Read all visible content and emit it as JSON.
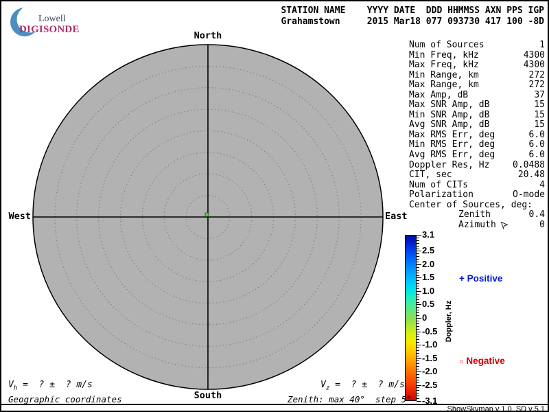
{
  "logo": {
    "line1": "Lowell",
    "line2": "DIGISONDE",
    "crescent_icon": "crescent-moon-icon",
    "colors": {
      "lowell_text": "#3d3f52",
      "digisonde_text": "#b02d68",
      "crescent": "#4a8fc2"
    }
  },
  "header": {
    "line1": "STATION NAME    YYYY DATE  DDD HHMMSS AXN PPS IGP",
    "line2": "Grahamstown     2015 Mar18 077 093730 417 100 -8D"
  },
  "compass": {
    "north": "North",
    "south": "South",
    "east": "East",
    "west": "West"
  },
  "stats": {
    "rows": [
      {
        "label": "Num of Sources",
        "value": "1"
      },
      {
        "label": "Min Freq, kHz",
        "value": "4300"
      },
      {
        "label": "Max Freq, kHz",
        "value": "4300"
      },
      {
        "label": "Min Range, km",
        "value": "272"
      },
      {
        "label": "Max Range, km",
        "value": "272"
      },
      {
        "label": "Max Amp, dB",
        "value": "37"
      },
      {
        "label": "Max SNR Amp, dB",
        "value": "15"
      },
      {
        "label": "Min SNR Amp, dB",
        "value": "15"
      },
      {
        "label": "Avg SNR Amp, dB",
        "value": "15"
      },
      {
        "label": "Max RMS Err, deg",
        "value": "6.0"
      },
      {
        "label": "Min RMS Err, deg",
        "value": "6.0"
      },
      {
        "label": "Avg RMS Err, deg",
        "value": "6.0"
      },
      {
        "label": "Doppler Res, Hz",
        "value": "0.0488"
      },
      {
        "label": "CIT, sec",
        "value": "20.48"
      },
      {
        "label": "Num of CITs",
        "value": "4"
      },
      {
        "label": "Polarization",
        "value": "O-mode"
      },
      {
        "label": "Center of Sources, deg:",
        "value": ""
      },
      {
        "label": "Zenith",
        "value": "0.4",
        "indent": true
      },
      {
        "label": "Azimuth",
        "value": "0",
        "indent": true,
        "cursor": true
      }
    ]
  },
  "colorbar": {
    "title": "Doppler, Hz",
    "max": 3.1,
    "min": -3.1,
    "minor_step": 0.1,
    "tick_values": [
      3.1,
      2.5,
      2.0,
      1.5,
      1.0,
      0.5,
      0,
      -0.5,
      -1.0,
      -1.5,
      -2.0,
      -2.5,
      -3.1
    ],
    "tick_labels": [
      "3.1",
      "2.5",
      "2.0",
      "1.5",
      "1.0",
      "0.5",
      "0",
      "-0.5",
      "-1.0",
      "-1.5",
      "-2.0",
      "-2.5",
      "-3.1"
    ],
    "gradient": [
      {
        "value": 3.1,
        "color": "#0008a0"
      },
      {
        "value": 2.9,
        "color": "#0018c0"
      },
      {
        "value": 2.6,
        "color": "#0038e8"
      },
      {
        "value": 2.2,
        "color": "#0068ff"
      },
      {
        "value": 1.8,
        "color": "#0098ff"
      },
      {
        "value": 1.4,
        "color": "#00c4ff"
      },
      {
        "value": 1.1,
        "color": "#00e0ee"
      },
      {
        "value": 0.8,
        "color": "#1ceec4"
      },
      {
        "value": 0.5,
        "color": "#44ee9a"
      },
      {
        "value": 0.2,
        "color": "#70e670"
      },
      {
        "value": 0.0,
        "color": "#86e05a"
      },
      {
        "value": -0.3,
        "color": "#b0e830"
      },
      {
        "value": -0.6,
        "color": "#d8f00c"
      },
      {
        "value": -0.9,
        "color": "#f6ea00"
      },
      {
        "value": -1.2,
        "color": "#ffd000"
      },
      {
        "value": -1.6,
        "color": "#ffa400"
      },
      {
        "value": -2.0,
        "color": "#ff7400"
      },
      {
        "value": -2.4,
        "color": "#fc4800"
      },
      {
        "value": -2.8,
        "color": "#ea1c00"
      },
      {
        "value": -3.1,
        "color": "#d40000"
      }
    ]
  },
  "legend": {
    "positive": {
      "symbol": "+",
      "label": "Positive",
      "color": "#0018d8"
    },
    "negative": {
      "symbol": "○",
      "label": "Negative",
      "color": "#d40000"
    }
  },
  "skymap": {
    "max_zenith_deg": 40,
    "zenith_step_deg": 5,
    "disc_color": "#b2b2b2",
    "source": {
      "zenith_deg": 0.4,
      "azimuth_deg": 0,
      "dot_color": "#55d245"
    }
  },
  "footer": {
    "vh": {
      "var": "V",
      "sub": "h",
      "rest": " =  ? ±  ? m/s"
    },
    "vz": {
      "var": "V",
      "sub": "z",
      "rest": " =  ? ±  ? m/s"
    },
    "coords": "Geographic coordinates",
    "zenith_info": "Zenith: max 40°  step 5°",
    "version": "ShowSkymap v 1.0  SD v 5.1"
  },
  "icons": [
    "crescent-moon-icon",
    "mouse-cursor-icon",
    "plus-symbol",
    "circle-symbol"
  ]
}
